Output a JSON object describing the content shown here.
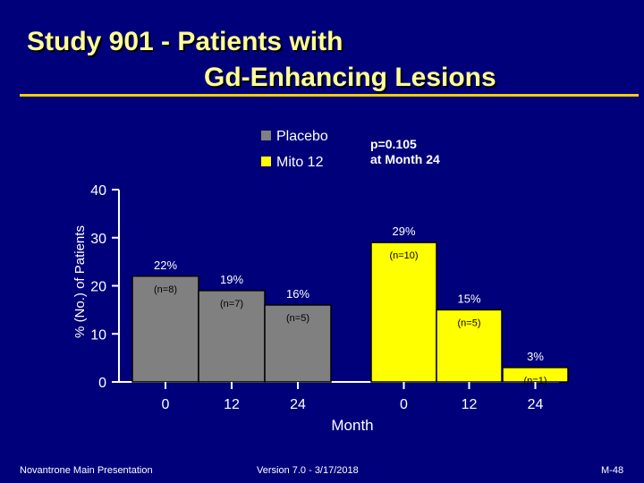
{
  "slide": {
    "title_line1": "Study 901 - Patients with",
    "title_line2": "Gd-Enhancing Lesions",
    "footer_left": "Novantrone Main Presentation",
    "footer_center": "Version 7.0 - 3/17/2018",
    "footer_right": "M-48",
    "background_color": "#00007a",
    "title_color": "#ffff99",
    "rule_color": "#f2d000"
  },
  "annotation": {
    "p_value": "p=0.105",
    "p_value_note": "at Month 24"
  },
  "chart_data": {
    "type": "bar",
    "xlabel": "Month",
    "ylabel": "% (No.) of Patients",
    "ylim": [
      0,
      40
    ],
    "yticks": [
      "0",
      "10",
      "20",
      "30",
      "40"
    ],
    "legend_position": "top",
    "series": [
      {
        "name": "Placebo",
        "color": "#808080",
        "categories": [
          "0",
          "12",
          "24"
        ],
        "values": [
          22,
          19,
          16
        ],
        "value_labels": [
          "22%",
          "19%",
          "16%"
        ],
        "n_labels": [
          "(n=8)",
          "(n=7)",
          "(n=5)"
        ]
      },
      {
        "name": "Mito 12",
        "color": "#ffff00",
        "categories": [
          "0",
          "12",
          "24"
        ],
        "values": [
          29,
          15,
          3
        ],
        "value_labels": [
          "29%",
          "15%",
          "3%"
        ],
        "n_labels": [
          "(n=10)",
          "(n=5)",
          "(n=1)"
        ]
      }
    ]
  }
}
